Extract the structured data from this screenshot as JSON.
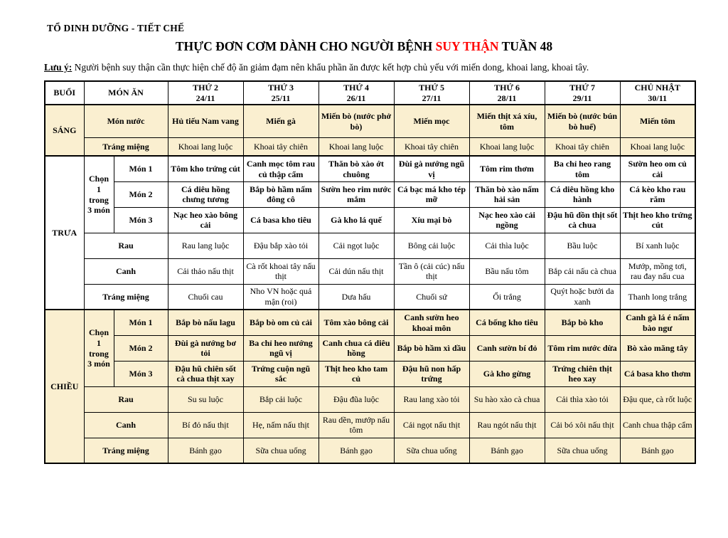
{
  "header": {
    "org": "TỔ DINH DƯỠNG - TIẾT CHẾ",
    "title_prefix": "THỰC ĐƠN CƠM DÀNH CHO NGƯỜI BỆNH ",
    "title_highlight": "SUY THẬN",
    "title_suffix": " TUẦN 48",
    "note_label": "Lưu ý:",
    "note_text": " Người bệnh suy thận cần thực hiện chế độ ăn giảm đạm nên khẩu phần ăn được kết hợp chủ yếu với miến dong, khoai lang, khoai tây."
  },
  "colors": {
    "accent_red": "#ff0000",
    "section_fill": "#faefd0",
    "border": "#000000"
  },
  "table": {
    "col_headers": {
      "buoi": "BUỔI",
      "mon_an": "MÓN ĂN"
    },
    "days": [
      {
        "label": "THỨ 2",
        "date": "24/11"
      },
      {
        "label": "THỨ 3",
        "date": "25/11"
      },
      {
        "label": "THỨ 4",
        "date": "26/11"
      },
      {
        "label": "THỨ 5",
        "date": "27/11"
      },
      {
        "label": "THỨ 6",
        "date": "28/11"
      },
      {
        "label": "THỨ 7",
        "date": "29/11"
      },
      {
        "label": "CHỦ NHẬT",
        "date": "30/11"
      }
    ],
    "sections": [
      {
        "name": "SÁNG",
        "filled": true,
        "chooser": "",
        "rows": [
          {
            "label": "Món nước",
            "bold": true,
            "tall": true,
            "cells": [
              "Hủ tiếu Nam vang",
              "Miến gà",
              "Miến bò (nước phở bò)",
              "Miến mọc",
              "Miến thịt xá xíu, tôm",
              "Miến bò (nước bún bò huế)",
              "Miến tôm"
            ]
          },
          {
            "label": "Tráng miệng",
            "bold": false,
            "short": true,
            "cells": [
              "Khoai lang luộc",
              "Khoai tây chiên",
              "Khoai lang luộc",
              "Khoai tây chiên",
              "Khoai lang luộc",
              "Khoai tây chiên",
              "Khoai lang luộc"
            ]
          }
        ]
      },
      {
        "name": "TRƯA",
        "filled": false,
        "chooser": "Chọn 1 trong 3 món",
        "rows": [
          {
            "label": "Món 1",
            "bold": true,
            "cells": [
              "Tôm kho trứng cút",
              "Canh mọc tôm rau củ thập cẩm",
              "Thăn bò xào ớt chuông",
              "Đùi gà nướng ngũ vị",
              "Tôm rim thơm",
              "Ba chỉ heo rang tôm",
              "Sườn heo om củ cải"
            ]
          },
          {
            "label": "Món 2",
            "bold": true,
            "cells": [
              "Cá diêu hồng chưng tương",
              "Bắp bò hầm nấm đông cô",
              "Sườn heo rim nước mắm",
              "Cá bạc má kho tép mỡ",
              "Thăn bò xào nấm hải sản",
              "Cá diêu hồng kho hành",
              "Cá kèo kho rau răm"
            ]
          },
          {
            "label": "Món 3",
            "bold": true,
            "cells": [
              "Nạc heo xào bông cải",
              "Cá basa kho tiêu",
              "Gà kho lá quế",
              "Xíu mại bò",
              "Nạc heo xào cải ngồng",
              "Đậu hũ dồn thịt sốt cà chua",
              "Thịt heo kho trứng cút"
            ]
          },
          {
            "label": "Rau",
            "bold": false,
            "cells": [
              "Rau lang luộc",
              "Đậu bắp xào tỏi",
              "Cải ngọt luộc",
              "Bông cải luộc",
              "Cải thìa luộc",
              "Bầu luộc",
              "Bí xanh luộc"
            ]
          },
          {
            "label": "Canh",
            "bold": false,
            "cells": [
              "Cải thảo nấu thịt",
              "Cà rốt khoai tây nấu thịt",
              "Cải dún nấu thịt",
              "Tần ô (cải cúc) nấu thịt",
              "Bầu nấu tôm",
              "Bắp cải nấu cà chua",
              "Mướp, mồng tơi, rau đay nấu cua"
            ]
          },
          {
            "label": "Tráng miệng",
            "bold": false,
            "cells": [
              "Chuối cau",
              "Nho VN hoặc quả mận (roi)",
              "Dưa hấu",
              "Chuối sứ",
              "Ổi trắng",
              "Quýt hoặc bưởi da xanh",
              "Thanh long trắng"
            ]
          }
        ]
      },
      {
        "name": "CHIỀU",
        "filled": true,
        "chooser": "Chọn 1 trong 3 món",
        "rows": [
          {
            "label": "Món 1",
            "bold": true,
            "cells": [
              "Bắp bò nấu lagu",
              "Bắp bò om củ cải",
              "Tôm xào bông cải",
              "Canh sườn heo khoai môn",
              "Cá bống kho tiêu",
              "Bắp bò kho",
              "Canh gà lá é nấm bào ngư"
            ]
          },
          {
            "label": "Món 2",
            "bold": true,
            "cells": [
              "Đùi gà nướng bơ tỏi",
              "Ba chỉ heo nướng ngũ vị",
              "Canh chua cá diêu hồng",
              "Bắp bò hầm xì dầu",
              "Canh sườn bí đỏ",
              "Tôm rim nước dừa",
              "Bò xào măng tây"
            ]
          },
          {
            "label": "Món 3",
            "bold": true,
            "cells": [
              "Đậu hũ chiên sốt cà chua thịt xay",
              "Trứng cuộn ngũ sắc",
              "Thịt heo kho tam củ",
              "Đậu hũ non hấp trứng",
              "Gà kho gừng",
              "Trứng chiên thịt heo xay",
              "Cá basa kho thơm"
            ]
          },
          {
            "label": "Rau",
            "bold": false,
            "cells": [
              "Su su luộc",
              "Bắp cải luộc",
              "Đậu đũa luộc",
              "Rau lang xào tỏi",
              "Su hào xào cà chua",
              "Cải thìa xào tỏi",
              "Đậu que, cà rốt luộc"
            ]
          },
          {
            "label": "Canh",
            "bold": false,
            "cells": [
              "Bí đỏ nấu thịt",
              "Hẹ, nấm nấu thịt",
              "Rau dền, mướp nấu tôm",
              "Cải ngọt nấu thịt",
              "Rau ngót nấu thịt",
              "Cải bó xôi nấu thịt",
              "Canh chua thập cẩm"
            ]
          },
          {
            "label": "Tráng miệng",
            "bold": false,
            "cells": [
              "Bánh gạo",
              "Sữa chua uống",
              "Bánh gạo",
              "Sữa chua uống",
              "Bánh gạo",
              "Sữa chua uống",
              "Bánh gạo"
            ]
          }
        ]
      }
    ]
  }
}
